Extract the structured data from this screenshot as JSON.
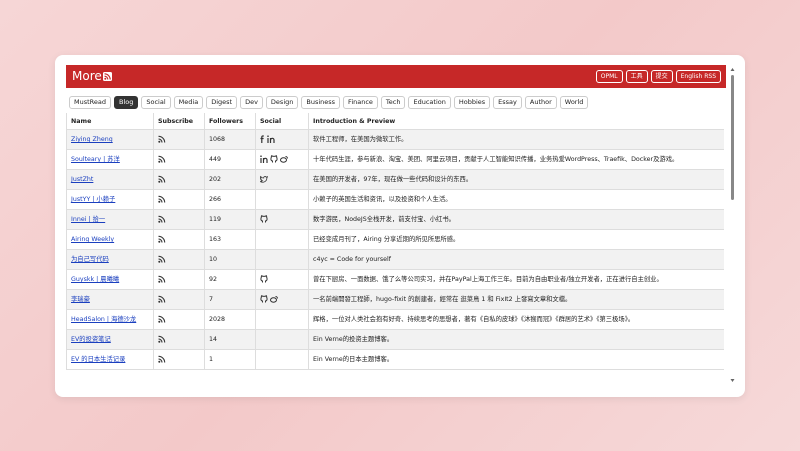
{
  "header": {
    "title": "More",
    "buttons": [
      "OPML",
      "工具",
      "提交",
      "English RSS"
    ]
  },
  "tabs": [
    "MustRead",
    "Blog",
    "Social",
    "Media",
    "Digest",
    "Dev",
    "Design",
    "Business",
    "Finance",
    "Tech",
    "Education",
    "Hobbies",
    "Essay",
    "Author",
    "World"
  ],
  "table": {
    "columns": [
      "Name",
      "Subscribe",
      "Followers",
      "Social",
      "Introduction & Preview"
    ],
    "rows": [
      [
        "Ziying Zheng",
        "1068",
        "软件工程师，在美国为微软工作。"
      ],
      [
        "Soulteary | 苏洋",
        "449",
        "十年代码生涯，参与新浪、淘宝、美团、阿里云项目，贡献于人工智能知识传播，业务热爱WordPress、Traefik、Docker及游戏。"
      ],
      [
        "JustZht",
        "202",
        "在美国的开发者，97年，现在做一些代码和设计的东西。"
      ],
      [
        "JustYY | 小赖子",
        "266",
        "小赖子的英国生活和资讯，以及投资和个人生活。"
      ],
      [
        "Innei | 拾一",
        "119",
        "数字游民，NodeJS全栈开发，前支付宝、小红书。"
      ],
      [
        "Airing Weekly",
        "163",
        "已经变成月刊了，Airing 分享近期的所见所思所感。"
      ],
      [
        "为自己写代码",
        "10",
        "c4yc = Code for yourself"
      ],
      [
        "Guyskk | 晨曦曦",
        "92",
        "曾在下厨房、一面数据、饿了么等公司实习，并在PayPal上海工作三年。目前为自由职业者/独立开发者，正在进行自主创业。"
      ],
      [
        "李瑞豪",
        "7",
        "一名前端開發工程師，hugo-fixit 的創建者，經常在 逛菜鳥 1 和 FixIt2 上發寫文章和文檔。"
      ],
      [
        "HeadSalon | 海德沙龙",
        "2028",
        "辉格，一位对人类社会抱有好奇、持续思考的思想者，著有《自私的皮球》《沐猴而冠》《群居的艺术》《第三极场》。"
      ],
      [
        "EV的投资笔记",
        "14",
        "Ein Verne的投资主题博客。"
      ],
      [
        "EV 的日本生活记录",
        "1",
        "Ein Verne的日本主题博客。"
      ]
    ]
  }
}
